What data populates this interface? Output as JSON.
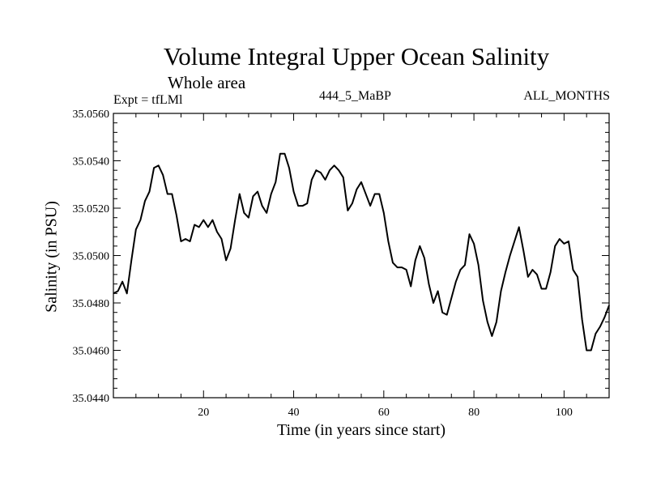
{
  "chart_data": {
    "type": "line",
    "title": "Volume Integral Upper Ocean Salinity",
    "subtitle": "Whole area",
    "annotations": {
      "left": "Expt = tfLMl",
      "center": "444_5_MaBP",
      "right": "ALL_MONTHS"
    },
    "xlabel": "Time (in years since start)",
    "ylabel": "Salinity (in PSU)",
    "xlim": [
      0,
      110
    ],
    "ylim": [
      35.044,
      35.056
    ],
    "xticks": [
      20,
      40,
      60,
      80,
      100
    ],
    "xtick_labels": [
      "20",
      "40",
      "60",
      "80",
      "100"
    ],
    "yticks": [
      35.044,
      35.046,
      35.048,
      35.05,
      35.052,
      35.054,
      35.056
    ],
    "ytick_labels": [
      "35.0440",
      "35.0460",
      "35.0480",
      "35.0500",
      "35.0520",
      "35.0540",
      "35.0560"
    ],
    "grid": false,
    "series": [
      {
        "name": "Salinity",
        "x": [
          0,
          1,
          2,
          3,
          4,
          5,
          6,
          7,
          8,
          9,
          10,
          11,
          12,
          13,
          14,
          15,
          16,
          17,
          18,
          19,
          20,
          21,
          22,
          23,
          24,
          25,
          26,
          27,
          28,
          29,
          30,
          31,
          32,
          33,
          34,
          35,
          36,
          37,
          38,
          39,
          40,
          41,
          42,
          43,
          44,
          45,
          46,
          47,
          48,
          49,
          50,
          51,
          52,
          53,
          54,
          55,
          56,
          57,
          58,
          59,
          60,
          61,
          62,
          63,
          64,
          65,
          66,
          67,
          68,
          69,
          70,
          71,
          72,
          73,
          74,
          75,
          76,
          77,
          78,
          79,
          80,
          81,
          82,
          83,
          84,
          85,
          86,
          87,
          88,
          89,
          90,
          91,
          92,
          93,
          94,
          95,
          96,
          97,
          98,
          99,
          100,
          101,
          102,
          103,
          104,
          105,
          106,
          107,
          108,
          109,
          110
        ],
        "values": [
          35.0484,
          35.0485,
          35.0489,
          35.0484,
          35.0498,
          35.0511,
          35.0515,
          35.0523,
          35.0527,
          35.0537,
          35.0538,
          35.0534,
          35.0526,
          35.0526,
          35.0517,
          35.0506,
          35.0507,
          35.0506,
          35.0513,
          35.0512,
          35.0515,
          35.0512,
          35.0515,
          35.051,
          35.0507,
          35.0498,
          35.0503,
          35.0515,
          35.0526,
          35.0518,
          35.0516,
          35.0525,
          35.0527,
          35.0521,
          35.0518,
          35.0526,
          35.0531,
          35.0543,
          35.0543,
          35.0537,
          35.0527,
          35.0521,
          35.0521,
          35.0522,
          35.0532,
          35.0536,
          35.0535,
          35.0532,
          35.0536,
          35.0538,
          35.0536,
          35.0533,
          35.0519,
          35.0522,
          35.0528,
          35.0531,
          35.0526,
          35.0521,
          35.0526,
          35.0526,
          35.0518,
          35.0506,
          35.0497,
          35.0495,
          35.0495,
          35.0494,
          35.0487,
          35.0498,
          35.0504,
          35.0499,
          35.0488,
          35.048,
          35.0485,
          35.0476,
          35.0475,
          35.0482,
          35.0489,
          35.0494,
          35.0496,
          35.0509,
          35.0505,
          35.0496,
          35.0481,
          35.0472,
          35.0466,
          35.0472,
          35.0485,
          35.0493,
          35.05,
          35.0506,
          35.0512,
          35.0502,
          35.0491,
          35.0494,
          35.0492,
          35.0486,
          35.0486,
          35.0493,
          35.0504,
          35.0507,
          35.0505,
          35.0506,
          35.0494,
          35.0491,
          35.0473,
          35.046,
          35.046,
          35.0467,
          35.047,
          35.0474,
          35.0479
        ]
      }
    ]
  }
}
